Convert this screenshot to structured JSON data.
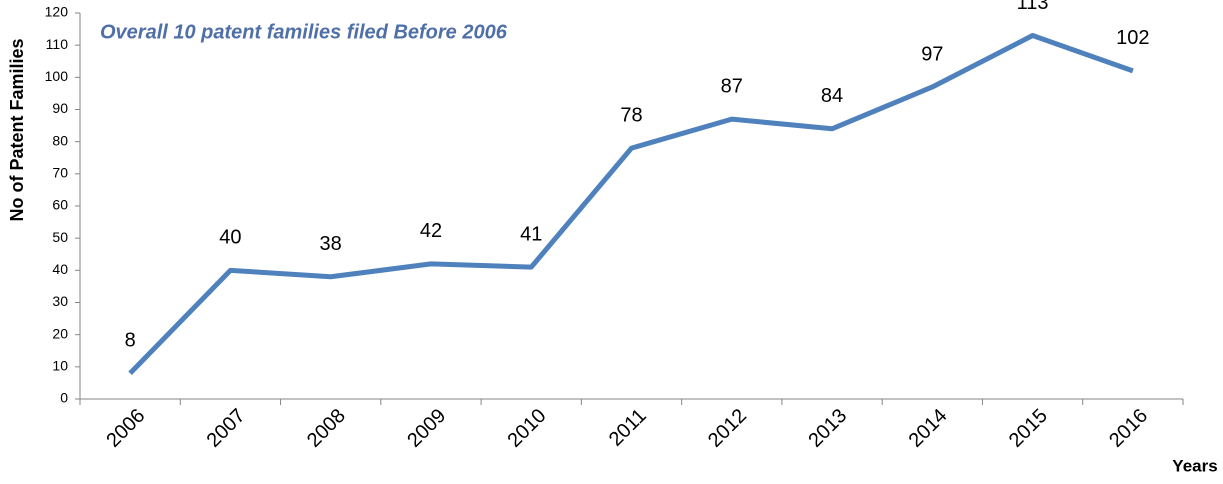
{
  "chart_data": {
    "type": "line",
    "annotation": "Overall 10 patent families filed Before 2006",
    "x_label": "Years",
    "y_label": "No of Patent Families",
    "categories": [
      "2006",
      "2007",
      "2008",
      "2009",
      "2010",
      "2011",
      "2012",
      "2013",
      "2014",
      "2015",
      "2016"
    ],
    "series": [
      {
        "name": "No of Patent Families",
        "color": "#4f81bd",
        "values": [
          8,
          40,
          38,
          42,
          41,
          78,
          87,
          84,
          97,
          113,
          102
        ]
      }
    ],
    "ylim": [
      0,
      120
    ],
    "yticks": [
      0,
      10,
      20,
      30,
      40,
      50,
      60,
      70,
      80,
      90,
      100,
      110,
      120
    ],
    "grid": false,
    "data_labels": true
  }
}
